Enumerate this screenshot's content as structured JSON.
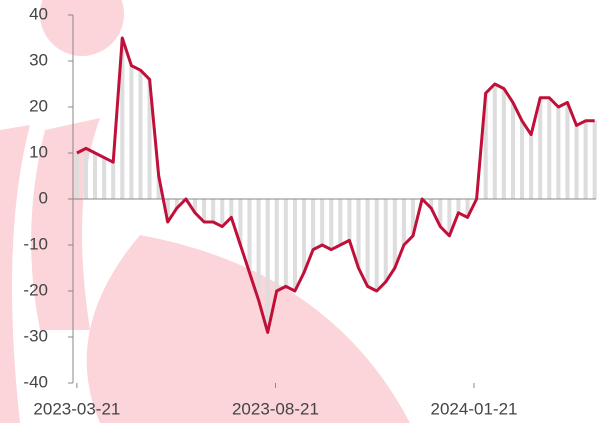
{
  "chart_data": {
    "type": "line",
    "x": [
      "2023-03-21",
      "2023-03-28",
      "2023-04-04",
      "2023-04-11",
      "2023-04-18",
      "2023-04-25",
      "2023-05-02",
      "2023-05-09",
      "2023-05-16",
      "2023-05-23",
      "2023-05-30",
      "2023-06-06",
      "2023-06-13",
      "2023-06-20",
      "2023-06-27",
      "2023-07-04",
      "2023-07-11",
      "2023-07-18",
      "2023-07-25",
      "2023-08-01",
      "2023-08-08",
      "2023-08-15",
      "2023-08-22",
      "2023-08-29",
      "2023-09-05",
      "2023-09-12",
      "2023-09-19",
      "2023-09-26",
      "2023-10-03",
      "2023-10-10",
      "2023-10-17",
      "2023-10-24",
      "2023-10-31",
      "2023-11-07",
      "2023-11-14",
      "2023-11-21",
      "2023-11-28",
      "2023-12-05",
      "2023-12-12",
      "2023-12-19",
      "2023-12-26",
      "2024-01-02",
      "2024-01-09",
      "2024-01-16",
      "2024-01-23",
      "2024-01-30",
      "2024-02-06",
      "2024-02-13",
      "2024-02-20",
      "2024-02-27",
      "2024-03-05",
      "2024-03-12",
      "2024-03-19",
      "2024-03-26",
      "2024-04-02",
      "2024-04-09",
      "2024-04-16",
      "2024-04-23"
    ],
    "series": [
      {
        "color": "#c0103a",
        "bar_color": "#dddddd",
        "values": [
          10,
          11,
          10,
          9,
          8,
          35,
          29,
          28,
          26,
          5,
          -5,
          -2,
          0,
          -3,
          -5,
          -5,
          -6,
          -4,
          -10,
          -16,
          -22,
          -29,
          -20,
          -19,
          -20,
          -16,
          -11,
          -10,
          -11,
          -10,
          -9,
          -15,
          -19,
          -20,
          -18,
          -15,
          -10,
          -8,
          0,
          -2,
          -6,
          -8,
          -3,
          -4,
          0,
          23,
          25,
          24,
          21,
          17,
          14,
          22,
          22,
          20,
          21,
          16,
          17,
          17
        ]
      }
    ],
    "xlim": [
      "2023-03-18",
      "2024-04-24"
    ],
    "xticks": [
      "2023-03-21",
      "2023-08-21",
      "2024-01-21"
    ],
    "ylim": [
      -40,
      40
    ],
    "yticks": [
      -40,
      -30,
      -20,
      -10,
      0,
      10,
      20,
      30,
      40
    ]
  }
}
